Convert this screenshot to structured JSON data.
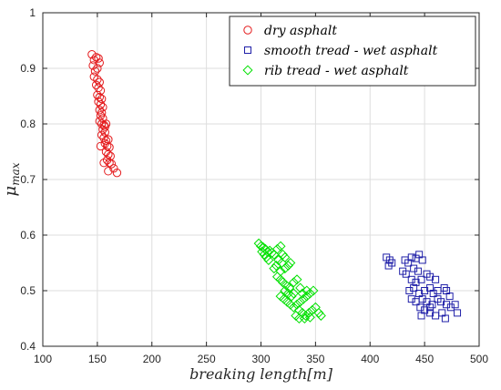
{
  "chart_data": {
    "type": "scatter",
    "title": "",
    "xlabel": "breaking length[m]",
    "ylabel_main": "μ",
    "ylabel_sub": "max",
    "xlim": [
      100,
      500
    ],
    "ylim": [
      0.4,
      1.0
    ],
    "xticks": [
      100,
      150,
      200,
      250,
      300,
      350,
      400,
      450,
      500
    ],
    "yticks": [
      0.4,
      0.5,
      0.6,
      0.7,
      0.8,
      0.9,
      1.0
    ],
    "xtick_labels": [
      "100",
      "150",
      "200",
      "250",
      "300",
      "350",
      "400",
      "450",
      "500"
    ],
    "ytick_labels": [
      "0.4",
      "0.5",
      "0.6",
      "0.7",
      "0.8",
      "0.9",
      "1"
    ],
    "grid": true,
    "legend_position": "top-right",
    "series": [
      {
        "name": "dry asphalt",
        "marker": "circle",
        "color": "#e41a1c",
        "points": [
          [
            145,
            0.925
          ],
          [
            147,
            0.915
          ],
          [
            149,
            0.92
          ],
          [
            151,
            0.918
          ],
          [
            146,
            0.905
          ],
          [
            150,
            0.9
          ],
          [
            152,
            0.91
          ],
          [
            148,
            0.895
          ],
          [
            147,
            0.885
          ],
          [
            150,
            0.88
          ],
          [
            152,
            0.875
          ],
          [
            149,
            0.87
          ],
          [
            151,
            0.865
          ],
          [
            153,
            0.86
          ],
          [
            150,
            0.852
          ],
          [
            152,
            0.848
          ],
          [
            154,
            0.845
          ],
          [
            151,
            0.84
          ],
          [
            153,
            0.835
          ],
          [
            155,
            0.83
          ],
          [
            152,
            0.825
          ],
          [
            154,
            0.82
          ],
          [
            153,
            0.815
          ],
          [
            155,
            0.81
          ],
          [
            152,
            0.805
          ],
          [
            154,
            0.8
          ],
          [
            156,
            0.798
          ],
          [
            158,
            0.8
          ],
          [
            155,
            0.79
          ],
          [
            157,
            0.785
          ],
          [
            154,
            0.78
          ],
          [
            156,
            0.775
          ],
          [
            158,
            0.77
          ],
          [
            160,
            0.772
          ],
          [
            157,
            0.765
          ],
          [
            159,
            0.76
          ],
          [
            161,
            0.758
          ],
          [
            158,
            0.75
          ],
          [
            160,
            0.745
          ],
          [
            162,
            0.742
          ],
          [
            159,
            0.735
          ],
          [
            161,
            0.73
          ],
          [
            163,
            0.728
          ],
          [
            165,
            0.72
          ],
          [
            168,
            0.712
          ],
          [
            160,
            0.715
          ],
          [
            156,
            0.73
          ],
          [
            153,
            0.76
          ],
          [
            157,
            0.795
          ]
        ]
      },
      {
        "name": "smooth tread - wet asphalt",
        "marker": "square",
        "color": "#1f1fa8",
        "points": [
          [
            415,
            0.56
          ],
          [
            418,
            0.555
          ],
          [
            420,
            0.55
          ],
          [
            417,
            0.545
          ],
          [
            432,
            0.555
          ],
          [
            435,
            0.55
          ],
          [
            438,
            0.56
          ],
          [
            442,
            0.558
          ],
          [
            445,
            0.565
          ],
          [
            448,
            0.555
          ],
          [
            430,
            0.535
          ],
          [
            433,
            0.53
          ],
          [
            440,
            0.54
          ],
          [
            444,
            0.535
          ],
          [
            438,
            0.52
          ],
          [
            442,
            0.515
          ],
          [
            447,
            0.52
          ],
          [
            452,
            0.53
          ],
          [
            455,
            0.525
          ],
          [
            460,
            0.52
          ],
          [
            436,
            0.5
          ],
          [
            440,
            0.505
          ],
          [
            445,
            0.495
          ],
          [
            450,
            0.5
          ],
          [
            455,
            0.505
          ],
          [
            458,
            0.495
          ],
          [
            462,
            0.5
          ],
          [
            468,
            0.505
          ],
          [
            470,
            0.5
          ],
          [
            438,
            0.485
          ],
          [
            442,
            0.48
          ],
          [
            448,
            0.485
          ],
          [
            452,
            0.48
          ],
          [
            457,
            0.475
          ],
          [
            462,
            0.485
          ],
          [
            465,
            0.48
          ],
          [
            470,
            0.475
          ],
          [
            474,
            0.47
          ],
          [
            446,
            0.47
          ],
          [
            450,
            0.465
          ],
          [
            455,
            0.46
          ],
          [
            460,
            0.455
          ],
          [
            466,
            0.46
          ],
          [
            469,
            0.45
          ],
          [
            480,
            0.46
          ],
          [
            447,
            0.455
          ],
          [
            455,
            0.47
          ],
          [
            473,
            0.49
          ],
          [
            478,
            0.475
          ]
        ]
      },
      {
        "name": "rib tread - wet asphalt",
        "marker": "diamond",
        "color": "#00e000",
        "points": [
          [
            298,
            0.585
          ],
          [
            300,
            0.58
          ],
          [
            302,
            0.578
          ],
          [
            304,
            0.575
          ],
          [
            306,
            0.57
          ],
          [
            308,
            0.572
          ],
          [
            310,
            0.568
          ],
          [
            312,
            0.565
          ],
          [
            301,
            0.57
          ],
          [
            303,
            0.565
          ],
          [
            305,
            0.56
          ],
          [
            307,
            0.555
          ],
          [
            315,
            0.575
          ],
          [
            318,
            0.58
          ],
          [
            320,
            0.565
          ],
          [
            322,
            0.56
          ],
          [
            316,
            0.555
          ],
          [
            319,
            0.55
          ],
          [
            314,
            0.545
          ],
          [
            312,
            0.54
          ],
          [
            318,
            0.535
          ],
          [
            322,
            0.54
          ],
          [
            325,
            0.545
          ],
          [
            327,
            0.55
          ],
          [
            315,
            0.525
          ],
          [
            318,
            0.52
          ],
          [
            320,
            0.515
          ],
          [
            323,
            0.51
          ],
          [
            326,
            0.505
          ],
          [
            322,
            0.5
          ],
          [
            325,
            0.495
          ],
          [
            328,
            0.49
          ],
          [
            330,
            0.495
          ],
          [
            318,
            0.49
          ],
          [
            321,
            0.485
          ],
          [
            324,
            0.48
          ],
          [
            327,
            0.475
          ],
          [
            330,
            0.47
          ],
          [
            333,
            0.475
          ],
          [
            336,
            0.48
          ],
          [
            339,
            0.485
          ],
          [
            342,
            0.49
          ],
          [
            345,
            0.495
          ],
          [
            348,
            0.5
          ],
          [
            335,
            0.465
          ],
          [
            338,
            0.46
          ],
          [
            341,
            0.455
          ],
          [
            344,
            0.46
          ],
          [
            347,
            0.465
          ],
          [
            350,
            0.47
          ],
          [
            353,
            0.46
          ],
          [
            355,
            0.455
          ],
          [
            332,
            0.455
          ],
          [
            335,
            0.45
          ],
          [
            340,
            0.45
          ],
          [
            345,
            0.452
          ],
          [
            342,
            0.5
          ],
          [
            338,
            0.495
          ],
          [
            336,
            0.505
          ],
          [
            330,
            0.515
          ],
          [
            333,
            0.52
          ]
        ]
      }
    ]
  }
}
